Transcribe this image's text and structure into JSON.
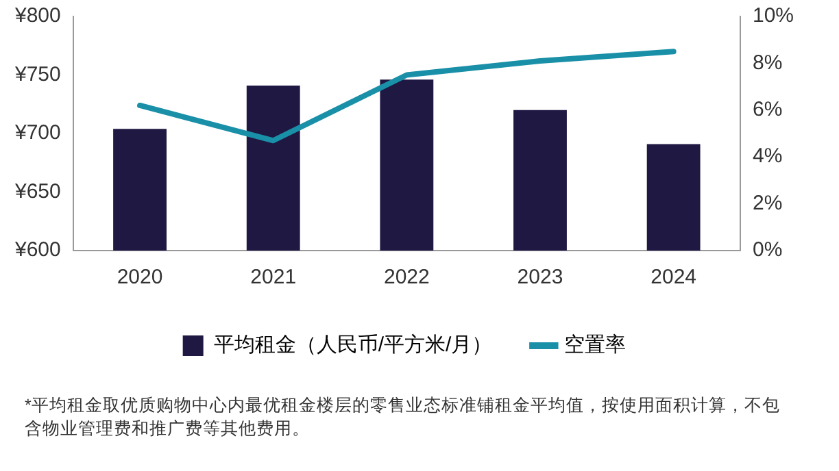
{
  "chart_data": {
    "type": "bar",
    "categories": [
      "2020",
      "2021",
      "2022",
      "2023",
      "2024"
    ],
    "series": [
      {
        "name": "平均租金（人民币/平方米/月）",
        "color": "#1e1843",
        "values": [
          704,
          741,
          746,
          720,
          691
        ]
      },
      {
        "name": "空置率",
        "type": "line",
        "axis": "y2",
        "color": "#1a90a8",
        "values": [
          6.2,
          4.7,
          7.5,
          8.1,
          8.5
        ]
      }
    ],
    "ylim": [
      600,
      800
    ],
    "yticks": [
      {
        "value": 600,
        "label": "¥600"
      },
      {
        "value": 650,
        "label": "¥650"
      },
      {
        "value": 700,
        "label": "¥700"
      },
      {
        "value": 750,
        "label": "¥750"
      },
      {
        "value": 800,
        "label": "¥800"
      }
    ],
    "y2lim": [
      0,
      10
    ],
    "y2ticks": [
      {
        "value": 0,
        "label": "0%"
      },
      {
        "value": 2,
        "label": "2%"
      },
      {
        "value": 4,
        "label": "4%"
      },
      {
        "value": 6,
        "label": "6%"
      },
      {
        "value": 8,
        "label": "8%"
      },
      {
        "value": 10,
        "label": "10%"
      }
    ],
    "grid": false,
    "legend": "bottom",
    "marker": "none",
    "annotations": [
      "*平均租金取优质购物中心内最优租金楼层的零售业态标准铺租金平均值，按使用面积计算，不包含物业管理费和推广费等其他费用。"
    ]
  }
}
